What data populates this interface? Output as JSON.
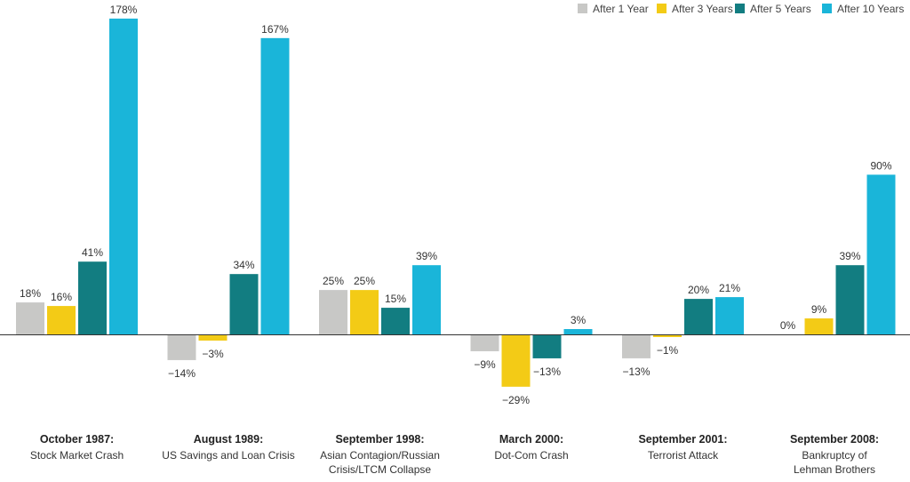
{
  "chart_data": {
    "type": "bar",
    "title": "",
    "xlabel": "",
    "ylabel": "",
    "ylim": [
      -30,
      180
    ],
    "grid": false,
    "legend_position": "top-right",
    "colors": [
      "#c8c8c6",
      "#f3cb16",
      "#127d81",
      "#1ab5d9"
    ],
    "value_labels": [
      [
        "18%",
        "16%",
        "41%",
        "178%"
      ],
      [
        "−14%",
        "−3%",
        "34%",
        "167%"
      ],
      [
        "25%",
        "25%",
        "15%",
        "39%"
      ],
      [
        "−9%",
        "−29%",
        "−13%",
        "3%"
      ],
      [
        "−13%",
        "−1%",
        "20%",
        "21%"
      ],
      [
        "0%",
        "9%",
        "39%",
        "90%"
      ]
    ],
    "categories": [
      {
        "title": "October 1987:",
        "lines": [
          "Stock Market Crash"
        ]
      },
      {
        "title": "August 1989:",
        "lines": [
          "US Savings and Loan Crisis"
        ]
      },
      {
        "title": "September 1998:",
        "lines": [
          "Asian Contagion/Russian",
          "Crisis/LTCM Collapse"
        ]
      },
      {
        "title": "March 2000:",
        "lines": [
          "Dot-Com Crash"
        ]
      },
      {
        "title": "September 2001:",
        "lines": [
          "Terrorist Attack"
        ]
      },
      {
        "title": "September 2008:",
        "lines": [
          "Bankruptcy of",
          "Lehman Brothers"
        ]
      }
    ],
    "series": [
      {
        "name": "After 1 Year",
        "values": [
          18,
          -14,
          25,
          -9,
          -13,
          0
        ]
      },
      {
        "name": "After 3 Years",
        "values": [
          16,
          -3,
          25,
          -29,
          -1,
          9
        ]
      },
      {
        "name": "After 5 Years",
        "values": [
          41,
          34,
          15,
          -13,
          20,
          39
        ]
      },
      {
        "name": "After 10 Years",
        "values": [
          178,
          167,
          39,
          3,
          21,
          90
        ]
      }
    ]
  }
}
